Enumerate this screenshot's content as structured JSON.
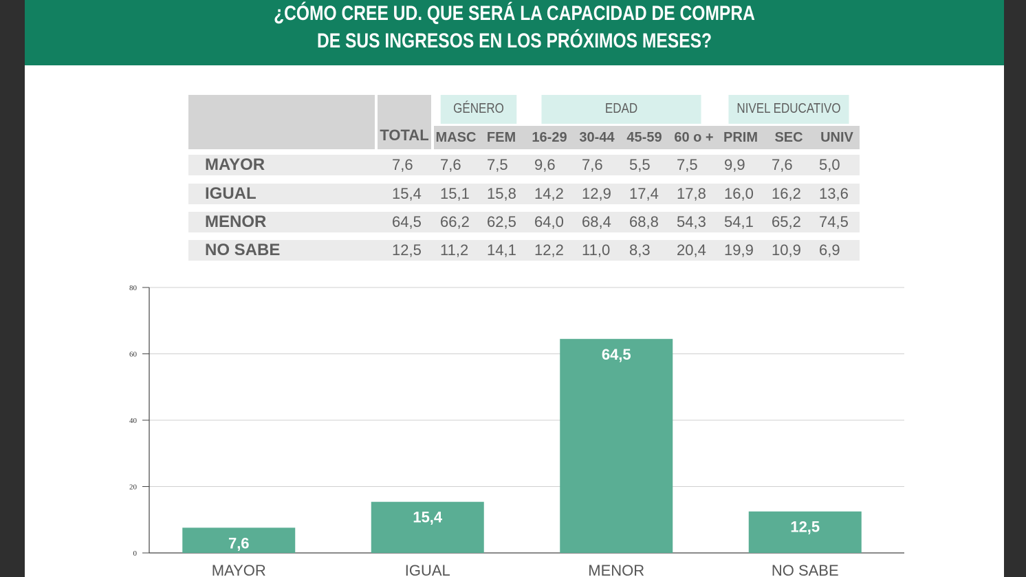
{
  "title": {
    "line1": "¿CÓMO CREE UD. QUE SERÁ LA CAPACIDAD DE COMPRA",
    "line2": "DE SUS INGRESOS EN LOS PRÓXIMOS MESES?"
  },
  "colors": {
    "banner": "#128060",
    "bar": "#5aae94"
  },
  "table": {
    "total_label": "TOTAL",
    "groups": [
      {
        "label": "GÉNERO",
        "subs": [
          "MASC",
          "FEM"
        ]
      },
      {
        "label": "EDAD",
        "subs": [
          "16-29",
          "30-44",
          "45-59",
          "60 o +"
        ]
      },
      {
        "label": "NIVEL EDUCATIVO",
        "subs": [
          "PRIM",
          "SEC",
          "UNIV"
        ]
      }
    ],
    "rows": [
      {
        "label": "MAYOR",
        "values": [
          "7,6",
          "7,6",
          "7,5",
          "9,6",
          "7,6",
          "5,5",
          "7,5",
          "9,9",
          "7,6",
          "5,0"
        ]
      },
      {
        "label": "IGUAL",
        "values": [
          "15,4",
          "15,1",
          "15,8",
          "14,2",
          "12,9",
          "17,4",
          "17,8",
          "16,0",
          "16,2",
          "13,6"
        ]
      },
      {
        "label": "MENOR",
        "values": [
          "64,5",
          "66,2",
          "62,5",
          "64,0",
          "68,4",
          "68,8",
          "54,3",
          "54,1",
          "65,2",
          "74,5"
        ]
      },
      {
        "label": "NO SABE",
        "values": [
          "12,5",
          "11,2",
          "14,1",
          "12,2",
          "11,0",
          "8,3",
          "20,4",
          "19,9",
          "10,9",
          "6,9"
        ]
      }
    ]
  },
  "chart_data": {
    "type": "bar",
    "categories": [
      "MAYOR",
      "IGUAL",
      "MENOR",
      "NO SABE"
    ],
    "values": [
      7.6,
      15.4,
      64.5,
      12.5
    ],
    "value_labels": [
      "7,6",
      "15,4",
      "64,5",
      "12,5"
    ],
    "ylim": [
      0,
      80
    ],
    "yticks": [
      0,
      20,
      40,
      60,
      80
    ],
    "grid": true,
    "title": "",
    "xlabel": "",
    "ylabel": ""
  }
}
